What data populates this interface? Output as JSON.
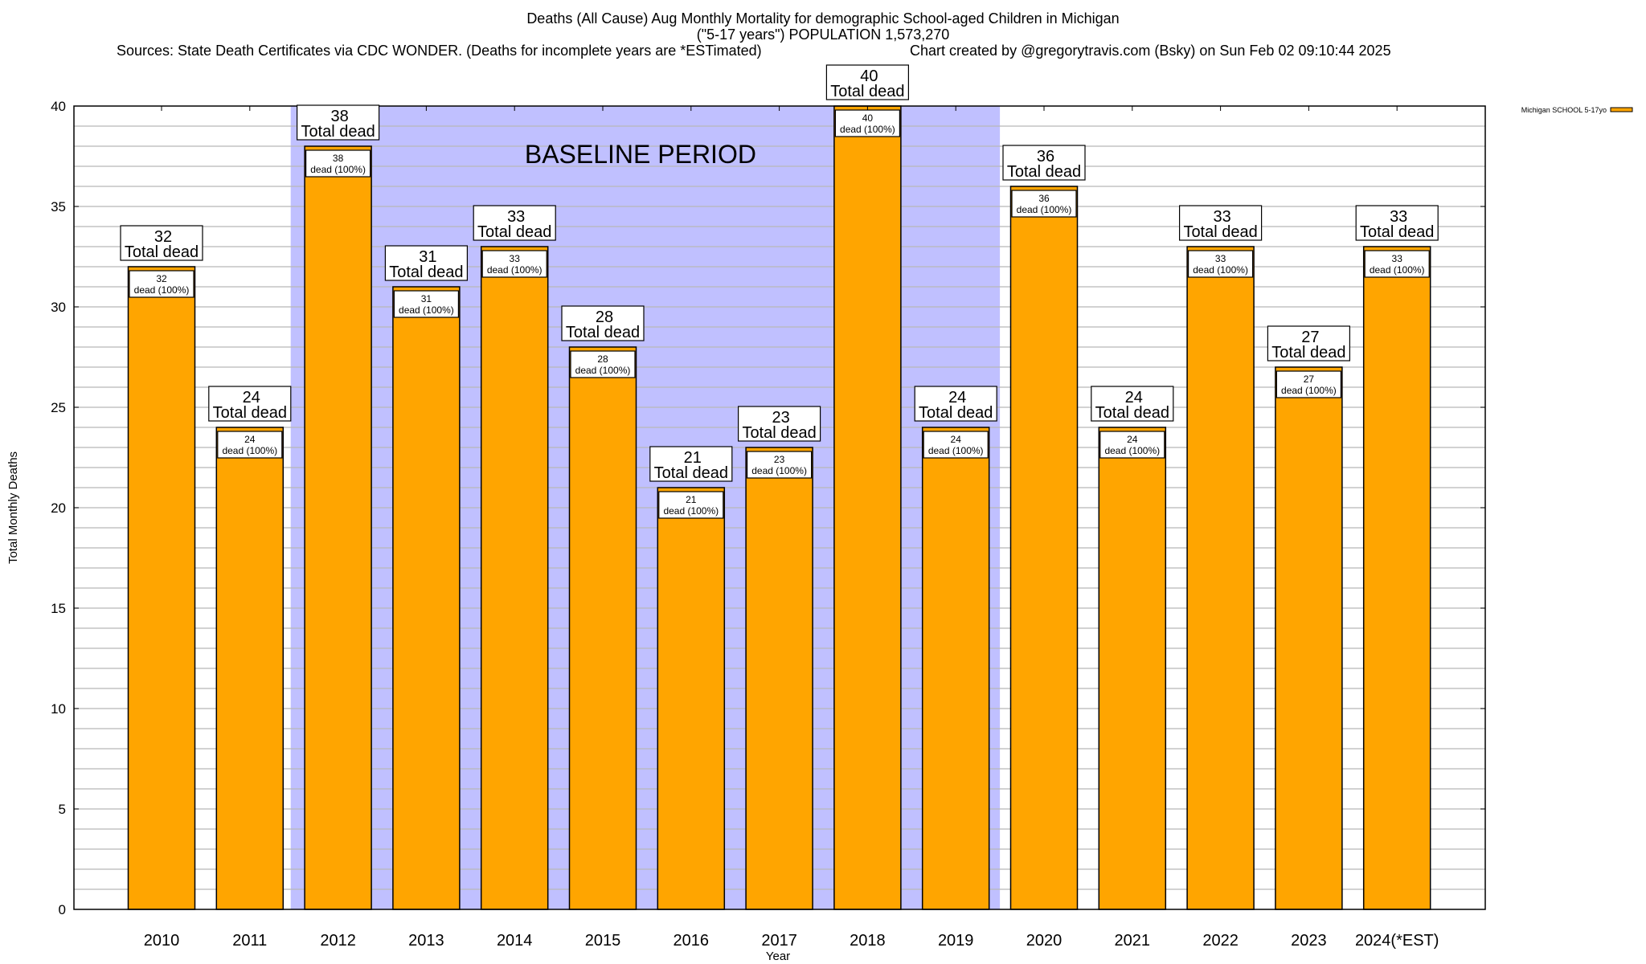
{
  "header": {
    "title_line1": "Deaths (All Cause) Aug Monthly Mortality for demographic School-aged Children in Michigan",
    "title_line2": "(\"5-17 years\") POPULATION 1,573,270",
    "sources": "Sources: State Death Certificates via CDC WONDER. (Deaths for incomplete years are *ESTimated)",
    "credit": "Chart created by @gregorytravis.com (Bsky) on Sun Feb 02 09:10:44 2025"
  },
  "colors": {
    "bar": "#ffa500",
    "baseline_shade": "#c0c0ff",
    "grid": "#b8b8b8"
  },
  "chart_data": {
    "type": "bar",
    "title": "Deaths (All Cause) Aug Monthly Mortality for demographic School-aged Children in Michigan",
    "xlabel": "Year",
    "ylabel": "Total Monthly Deaths",
    "ylim": [
      0,
      40
    ],
    "yticks": [
      0,
      5,
      10,
      15,
      20,
      25,
      30,
      35,
      40
    ],
    "grid": true,
    "legend": {
      "position": "top-right",
      "entries": [
        "Michigan SCHOOL 5-17yo"
      ]
    },
    "categories": [
      "2010",
      "2011",
      "2012",
      "2013",
      "2014",
      "2015",
      "2016",
      "2017",
      "2018",
      "2019",
      "2020",
      "2021",
      "2022",
      "2023",
      "2024(*EST)"
    ],
    "series": [
      {
        "name": "Michigan SCHOOL 5-17yo",
        "values": [
          32,
          24,
          38,
          31,
          33,
          28,
          21,
          23,
          40,
          24,
          36,
          24,
          33,
          27,
          33
        ]
      }
    ],
    "total_label_suffix": "Total dead",
    "inner_label_suffix": "dead (100%)",
    "annotation": {
      "text": "BASELINE PERIOD",
      "from": "2012",
      "to": "2019"
    }
  }
}
